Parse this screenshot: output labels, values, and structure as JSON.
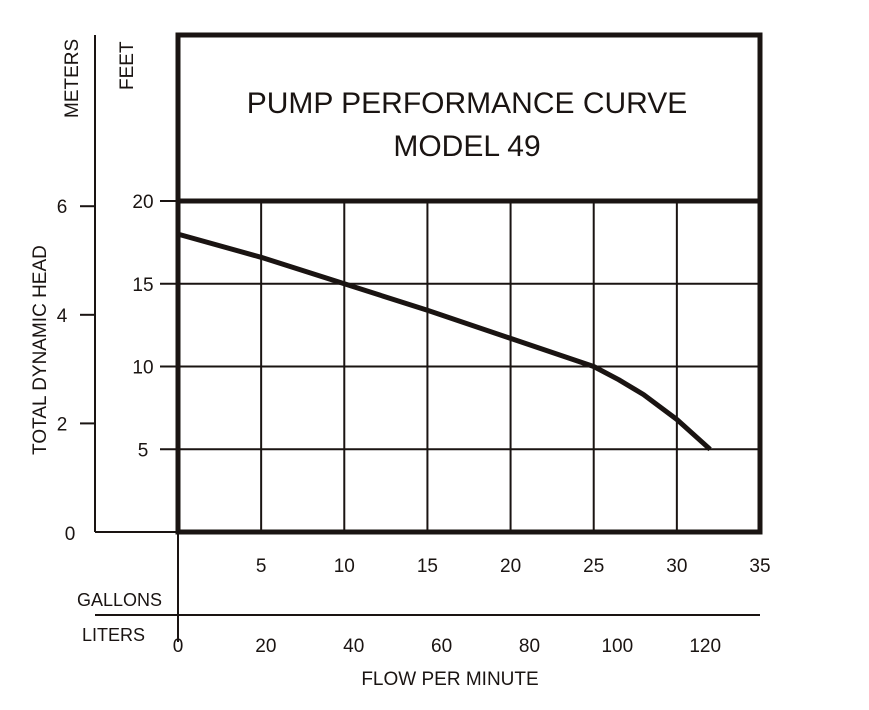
{
  "chart_data": {
    "type": "line",
    "title": "PUMP PERFORMANCE CURVE",
    "subtitle": "MODEL 49",
    "xlabel": "FLOW PER MINUTE",
    "ylabel": "TOTAL DYNAMIC HEAD",
    "x_units_primary": "GALLONS",
    "x_units_secondary": "LITERS",
    "y_units_primary": "FEET",
    "y_units_secondary": "METERS",
    "xlim": [
      0,
      35
    ],
    "ylim": [
      0,
      20
    ],
    "x_ticks": [
      5,
      10,
      15,
      20,
      25,
      30,
      35
    ],
    "y_ticks": [
      5,
      10,
      15,
      20
    ],
    "y_tick_zero": "0",
    "liters_ticks": [
      0,
      20,
      40,
      60,
      80,
      100,
      120
    ],
    "meters_ticks": [
      0,
      2,
      4,
      6
    ],
    "grid": true,
    "series": [
      {
        "name": "Model 49",
        "x": [
          0,
          5,
          10,
          15,
          20,
          25,
          26.5,
          28,
          30,
          32
        ],
        "y": [
          18,
          16.6,
          15,
          13.4,
          11.7,
          10,
          9.2,
          8.3,
          6.8,
          5
        ]
      }
    ]
  }
}
